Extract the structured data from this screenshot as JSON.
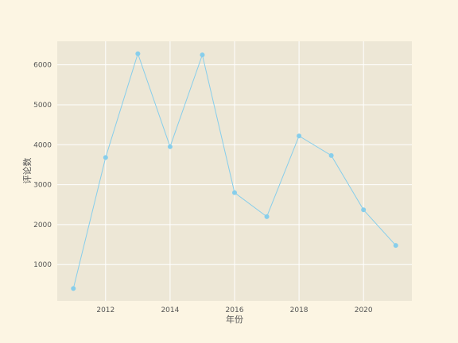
{
  "chart_data": {
    "type": "line",
    "title": "",
    "xlabel": "年份",
    "ylabel": "评论数",
    "x": [
      2011,
      2012,
      2013,
      2014,
      2015,
      2016,
      2017,
      2018,
      2019,
      2020,
      2021
    ],
    "series": [
      {
        "values": [
          400,
          3680,
          6280,
          3950,
          6250,
          2800,
          2200,
          4220,
          3730,
          2370,
          1480
        ]
      }
    ],
    "xlim": [
      2010.5,
      2021.5
    ],
    "ylim": [
      90,
      6590
    ],
    "xticks": [
      2012,
      2014,
      2016,
      2018,
      2020
    ],
    "yticks": [
      1000,
      2000,
      3000,
      4000,
      5000,
      6000
    ],
    "grid": true,
    "colors": {
      "page_background": "#fcf5e3",
      "plot_background": "#ede7d6",
      "grid": "#ffffff",
      "line": "#87ceeb",
      "marker": "#87ceeb",
      "text": "#555555"
    }
  }
}
